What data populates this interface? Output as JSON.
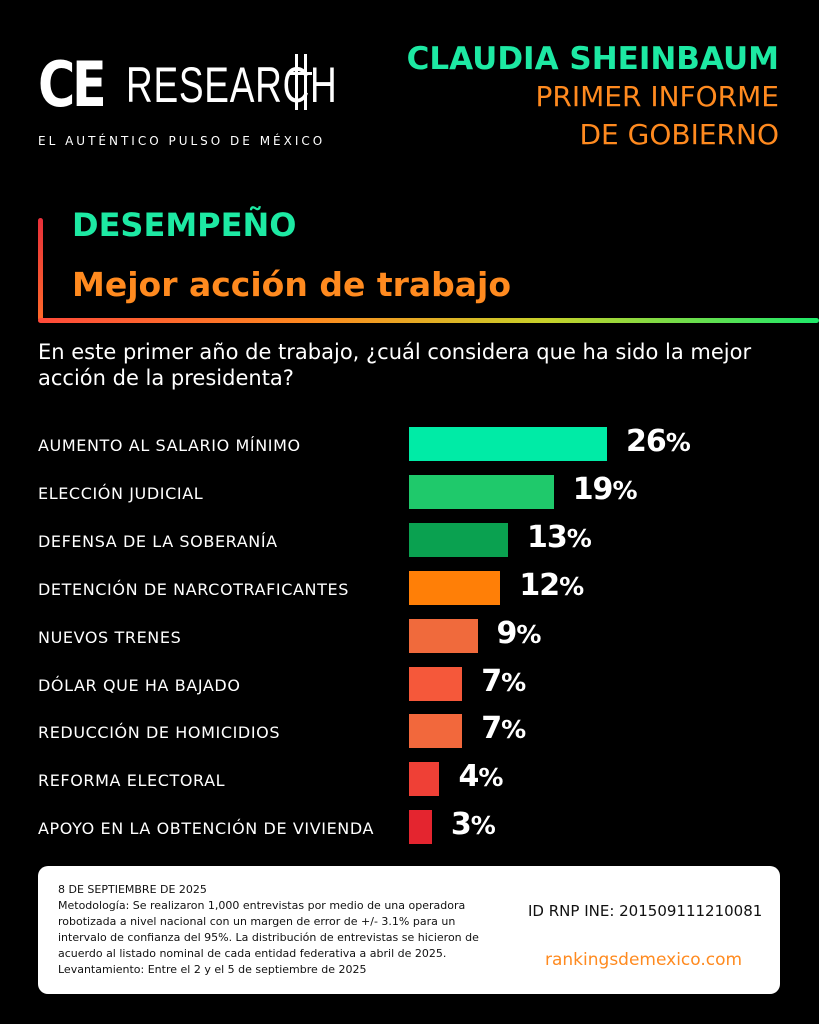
{
  "brand": {
    "logo_ce": "CE",
    "logo_research": "RESEARCH",
    "tagline": "EL AUTÉNTICO PULSO DE MÉXICO"
  },
  "header": {
    "name": "CLAUDIA SHEINBAUM",
    "line1": "PRIMER INFORME",
    "line2": "DE GOBIERNO"
  },
  "section": {
    "title": "DESEMPEÑO",
    "subtitle": "Mejor acción de trabajo"
  },
  "question": "En este primer año de trabajo, ¿cuál considera que ha sido la mejor acción de la presidenta?",
  "chart_data": {
    "type": "bar",
    "orientation": "horizontal",
    "title": "Mejor acción de trabajo",
    "unit": "%",
    "categories": [
      "AUMENTO AL SALARIO MÍNIMO",
      "ELECCIÓN JUDICIAL",
      "DEFENSA DE LA SOBERANÍA",
      "DETENCIÓN DE NARCOTRAFICANTES",
      "NUEVOS TRENES",
      "DÓLAR QUE HA BAJADO",
      "REDUCCIÓN DE HOMICIDIOS",
      "REFORMA ELECTORAL",
      "APOYO EN LA OBTENCIÓN DE VIVIENDA"
    ],
    "values": [
      26,
      19,
      13,
      12,
      9,
      7,
      7,
      4,
      3
    ],
    "labels": [
      "26",
      "19",
      "13",
      "12",
      "9",
      "7",
      "7",
      "4",
      "3"
    ],
    "colors": [
      "#00eba6",
      "#1fc96b",
      "#0aa150",
      "#ff7f07",
      "#f06a3c",
      "#f5583a",
      "#f2683c",
      "#ef4036",
      "#e4252f"
    ],
    "xlim": [
      0,
      26
    ]
  },
  "footer": {
    "date": "8 DE SEPTIEMBRE DE 2025",
    "methodology": "Metodología: Se realizaron 1,000 entrevistas por medio de una operadora robotizada a nivel nacional con un margen de error de +/- 3.1% para un intervalo de confianza del 95%. La distribución de entrevistas se hicieron de acuerdo al listado nominal de cada entidad federativa a abril de 2025.",
    "fieldwork": "Levantamiento: Entre el 2 y el 5 de septiembre de 2025",
    "rnp": "ID RNP INE: 201509111210081",
    "url": "rankingsdemexico.com"
  }
}
